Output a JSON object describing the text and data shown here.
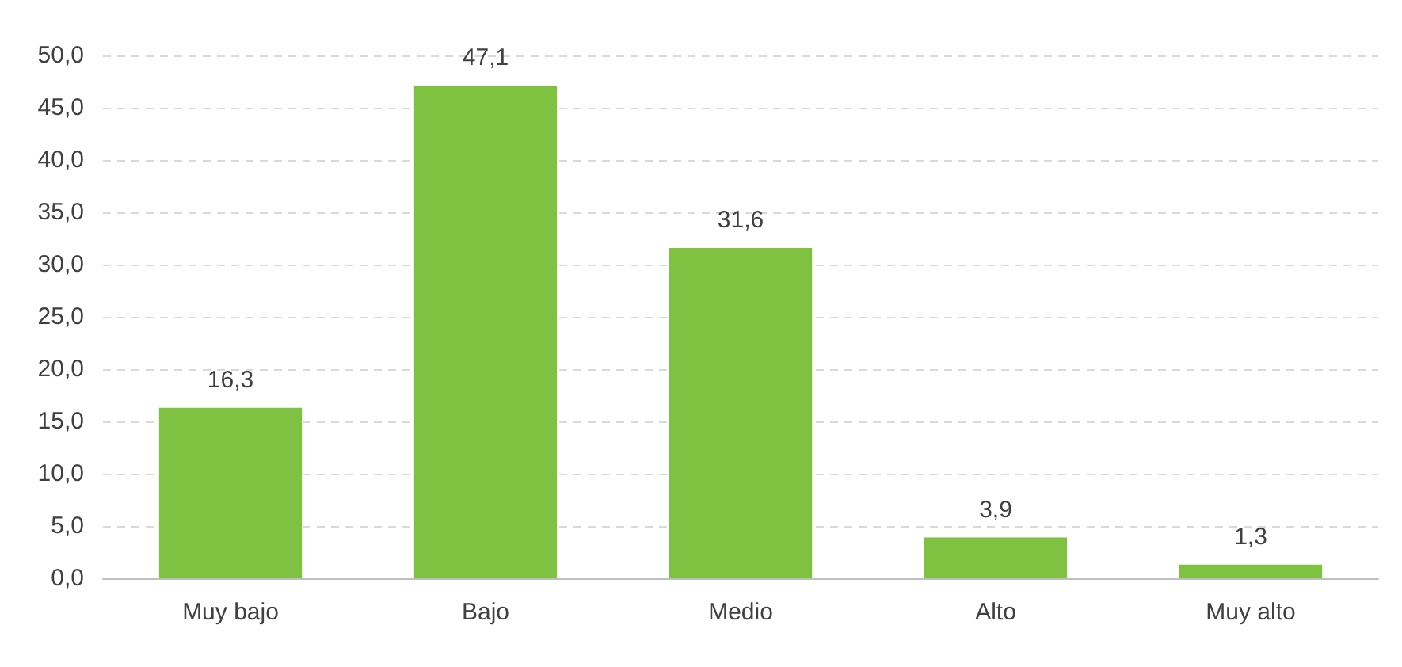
{
  "chart_data": {
    "type": "bar",
    "categories": [
      "Muy bajo",
      "Bajo",
      "Medio",
      "Alto",
      "Muy alto"
    ],
    "values": [
      16.3,
      47.1,
      31.6,
      3.9,
      1.3
    ],
    "value_labels": [
      "16,3",
      "47,1",
      "31,6",
      "3,9",
      "1,3"
    ],
    "color": "#7fc241",
    "ylim": [
      0,
      50
    ],
    "yticks": [
      {
        "value": 0,
        "label": "0,0"
      },
      {
        "value": 5,
        "label": "5,0"
      },
      {
        "value": 10,
        "label": "10,0"
      },
      {
        "value": 15,
        "label": "15,0"
      },
      {
        "value": 20,
        "label": "20,0"
      },
      {
        "value": 25,
        "label": "25,0"
      },
      {
        "value": 30,
        "label": "30,0"
      },
      {
        "value": 35,
        "label": "35,0"
      },
      {
        "value": 40,
        "label": "40,0"
      },
      {
        "value": 45,
        "label": "45,0"
      },
      {
        "value": 50,
        "label": "50,0"
      }
    ],
    "grid": "y"
  }
}
